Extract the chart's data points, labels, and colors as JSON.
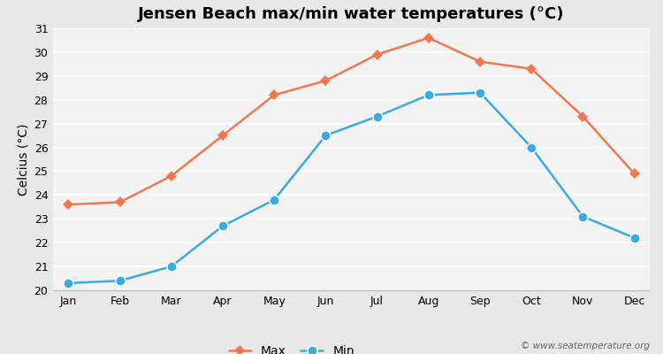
{
  "title": "Jensen Beach max/min water temperatures (°C)",
  "ylabel": "Celcius (°C)",
  "months": [
    "Jan",
    "Feb",
    "Mar",
    "Apr",
    "May",
    "Jun",
    "Jul",
    "Aug",
    "Sep",
    "Oct",
    "Nov",
    "Dec"
  ],
  "max_temps": [
    23.6,
    23.7,
    24.8,
    26.5,
    28.2,
    28.8,
    29.9,
    30.6,
    29.6,
    29.3,
    27.3,
    24.9
  ],
  "min_temps": [
    20.3,
    20.4,
    21.0,
    22.7,
    23.8,
    26.5,
    27.3,
    28.2,
    28.3,
    26.0,
    23.1,
    22.2
  ],
  "max_color": "#f07850",
  "min_color": "#3aabe0",
  "fig_bg_color": "#e8e8e8",
  "plot_bg_color": "#f2f2f2",
  "grid_color": "#ffffff",
  "ylim": [
    20,
    31
  ],
  "yticks": [
    20,
    21,
    22,
    23,
    24,
    25,
    26,
    27,
    28,
    29,
    30,
    31
  ],
  "legend_labels": [
    "Max",
    "Min"
  ],
  "watermark": "© www.seatemperature.org",
  "max_marker_size": 6,
  "min_marker_size": 8,
  "line_width": 1.8,
  "title_fontsize": 13,
  "tick_fontsize": 9,
  "ylabel_fontsize": 10
}
